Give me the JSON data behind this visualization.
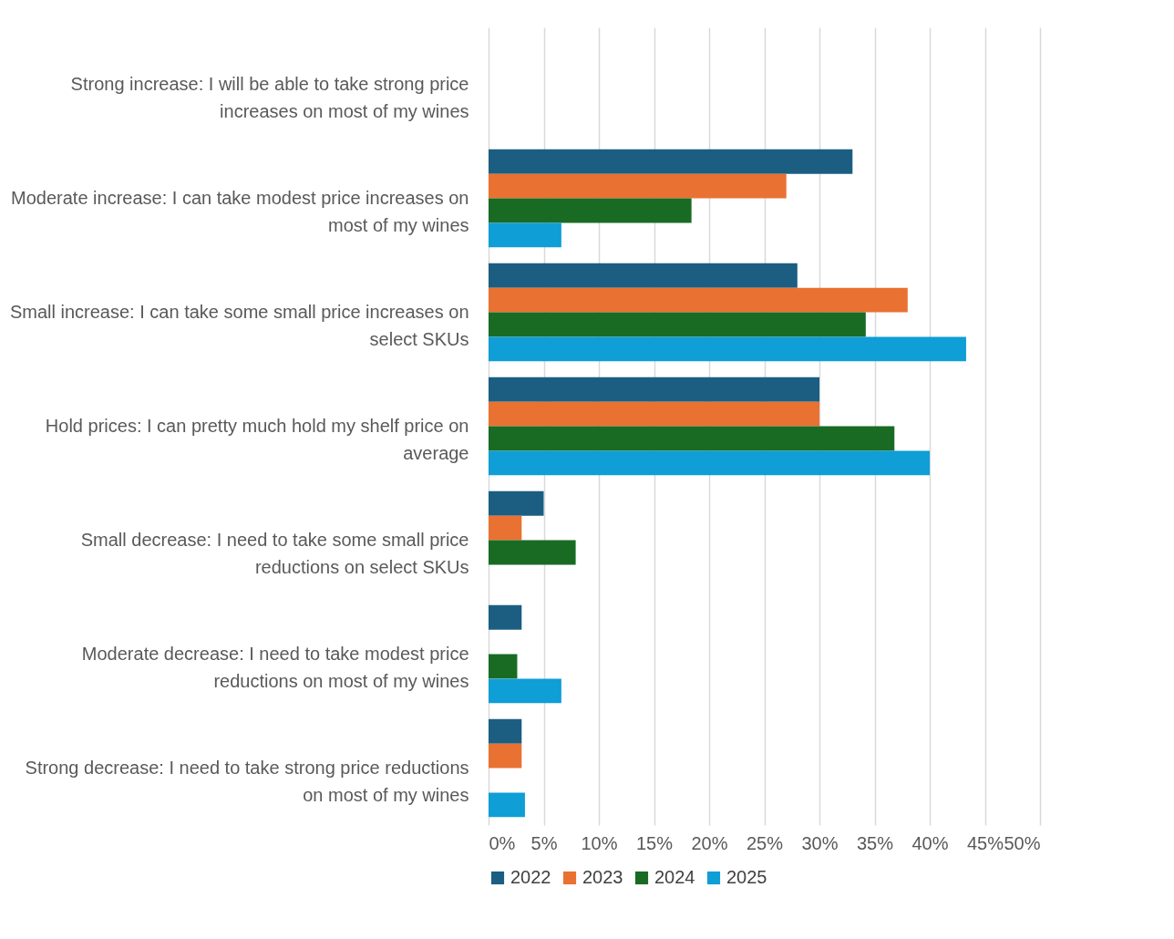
{
  "chart_data": {
    "type": "bar",
    "orientation": "horizontal",
    "categories": [
      "Strong increase: I will be able to take strong price increases on most of my wines",
      "Moderate increase: I can take modest price increases on most of my wines",
      "Small increase: I can take some small price increases on select SKUs",
      "Hold prices: I can pretty much hold my shelf price on average",
      "Small decrease: I need to take some small price reductions on select SKUs",
      "Moderate decrease: I need to take modest price reductions on most of my wines",
      "Strong decrease: I need to take strong price reductions on most of my wines"
    ],
    "series": [
      {
        "name": "2022",
        "color": "#1b5e82",
        "values": [
          null,
          33,
          28,
          30,
          5,
          3,
          3
        ]
      },
      {
        "name": "2023",
        "color": "#e97132",
        "values": [
          null,
          27,
          38,
          30,
          3,
          null,
          3
        ]
      },
      {
        "name": "2024",
        "color": "#196b24",
        "values": [
          null,
          18.4,
          34.2,
          36.8,
          7.9,
          2.6,
          null
        ]
      },
      {
        "name": "2025",
        "color": "#0f9ed5",
        "values": [
          null,
          6.6,
          43.3,
          40,
          null,
          6.6,
          3.3
        ]
      }
    ],
    "xlim": [
      0,
      50
    ],
    "xticks": [
      {
        "value": 0,
        "label": "0%"
      },
      {
        "value": 5,
        "label": "5%"
      },
      {
        "value": 10,
        "label": "10%"
      },
      {
        "value": 15,
        "label": "15%"
      },
      {
        "value": 20,
        "label": "20%"
      },
      {
        "value": 25,
        "label": "25%"
      },
      {
        "value": 30,
        "label": "30%"
      },
      {
        "value": 35,
        "label": "35%"
      },
      {
        "value": 40,
        "label": "40%"
      },
      {
        "value": 45,
        "label": "45%"
      },
      {
        "value": 50,
        "label": "50%"
      }
    ],
    "grid": "x",
    "legend": "bottom"
  }
}
